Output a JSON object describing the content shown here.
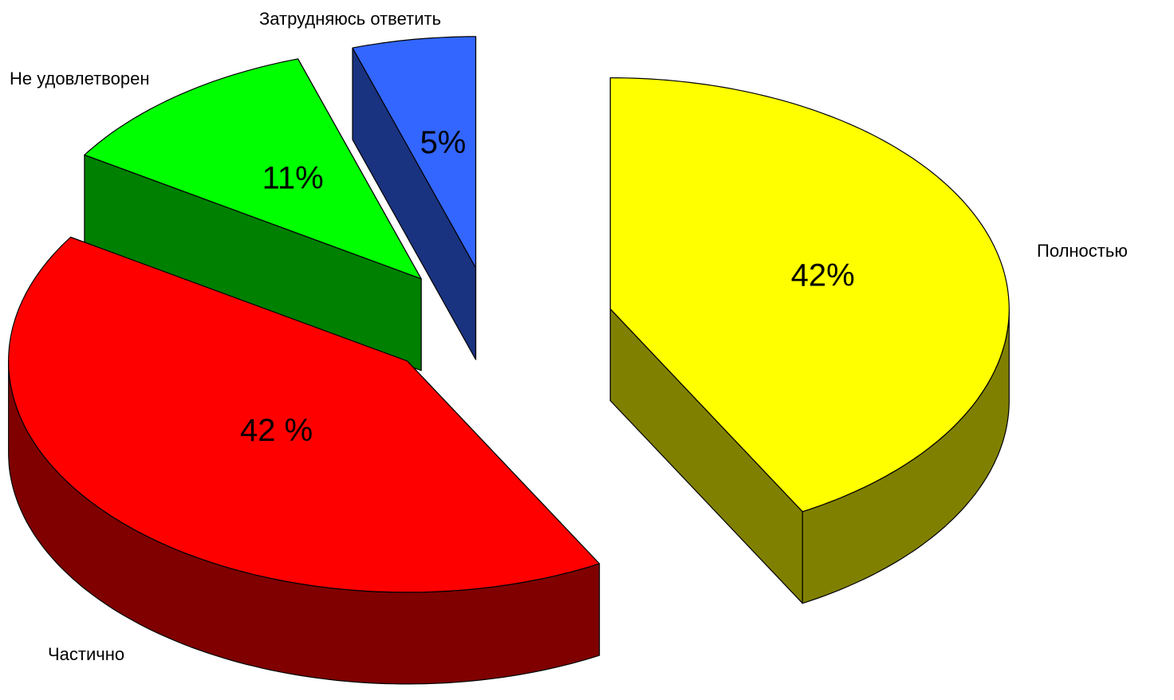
{
  "chart_data": {
    "type": "pie",
    "categories": [
      "Полностью",
      "Частично",
      "Не удовлетворен",
      "Затрудняюсь ответить"
    ],
    "values": [
      42,
      42,
      11,
      5
    ],
    "value_labels": [
      "42%",
      "42 %",
      "11%",
      "5%"
    ],
    "colors": [
      "#ffff00",
      "#ff0000",
      "#00ff00",
      "#3366ff"
    ]
  }
}
